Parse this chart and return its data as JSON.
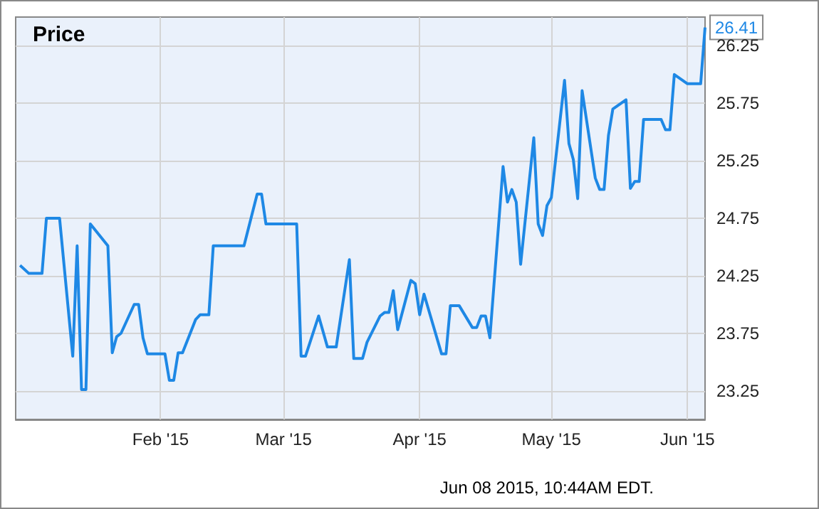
{
  "chart_data": {
    "type": "line",
    "title": "Price",
    "x": [
      "2014-12-31",
      "2015-01-02",
      "2015-01-05",
      "2015-01-06",
      "2015-01-09",
      "2015-01-12",
      "2015-01-13",
      "2015-01-14",
      "2015-01-15",
      "2015-01-16",
      "2015-01-20",
      "2015-01-21",
      "2015-01-22",
      "2015-01-23",
      "2015-01-26",
      "2015-01-27",
      "2015-01-28",
      "2015-01-29",
      "2015-02-02",
      "2015-02-03",
      "2015-02-04",
      "2015-02-05",
      "2015-02-06",
      "2015-02-09",
      "2015-02-10",
      "2015-02-12",
      "2015-02-13",
      "2015-02-20",
      "2015-02-23",
      "2015-02-24",
      "2015-02-25",
      "2015-03-04",
      "2015-03-05",
      "2015-03-06",
      "2015-03-09",
      "2015-03-11",
      "2015-03-13",
      "2015-03-16",
      "2015-03-17",
      "2015-03-19",
      "2015-03-20",
      "2015-03-23",
      "2015-03-24",
      "2015-03-25",
      "2015-03-26",
      "2015-03-27",
      "2015-03-30",
      "2015-03-31",
      "2015-04-01",
      "2015-04-02",
      "2015-04-06",
      "2015-04-07",
      "2015-04-08",
      "2015-04-10",
      "2015-04-13",
      "2015-04-14",
      "2015-04-15",
      "2015-04-16",
      "2015-04-17",
      "2015-04-20",
      "2015-04-21",
      "2015-04-22",
      "2015-04-23",
      "2015-04-24",
      "2015-04-27",
      "2015-04-28",
      "2015-04-29",
      "2015-04-30",
      "2015-05-01",
      "2015-05-04",
      "2015-05-05",
      "2015-05-06",
      "2015-05-07",
      "2015-05-08",
      "2015-05-11",
      "2015-05-12",
      "2015-05-13",
      "2015-05-14",
      "2015-05-15",
      "2015-05-18",
      "2015-05-19",
      "2015-05-20",
      "2015-05-21",
      "2015-05-22",
      "2015-05-26",
      "2015-05-27",
      "2015-05-28",
      "2015-05-29",
      "2015-06-01",
      "2015-06-04",
      "2015-06-05"
    ],
    "series": [
      {
        "color": "#1e88e5",
        "values": [
          24.34,
          24.27,
          24.27,
          24.75,
          24.75,
          23.55,
          24.51,
          23.26,
          23.26,
          24.7,
          24.51,
          23.58,
          23.72,
          23.75,
          24.0,
          24.0,
          23.71,
          23.57,
          23.57,
          23.34,
          23.34,
          23.58,
          23.58,
          23.87,
          23.91,
          23.91,
          24.51,
          24.51,
          24.96,
          24.96,
          24.7,
          24.7,
          23.55,
          23.55,
          23.9,
          23.63,
          23.63,
          24.39,
          23.53,
          23.53,
          23.67,
          23.9,
          23.93,
          23.93,
          24.12,
          23.78,
          24.21,
          24.18,
          23.91,
          24.09,
          23.57,
          23.57,
          23.99,
          23.99,
          23.8,
          23.8,
          23.9,
          23.9,
          23.71,
          25.2,
          24.89,
          25.0,
          24.89,
          24.35,
          25.45,
          24.7,
          24.6,
          24.86,
          24.93,
          25.95,
          25.4,
          25.26,
          24.92,
          25.86,
          25.1,
          25.0,
          25.0,
          25.47,
          25.7,
          25.78,
          25.01,
          25.07,
          25.07,
          25.61,
          25.61,
          25.52,
          25.52,
          26.0,
          25.92,
          25.92,
          26.41
        ]
      }
    ],
    "xlim": [
      "2014-12-30",
      "2015-06-05"
    ],
    "xticks": [
      {
        "value": "2015-02-01",
        "label": "Feb '15"
      },
      {
        "value": "2015-03-01",
        "label": "Mar '15"
      },
      {
        "value": "2015-04-01",
        "label": "Apr '15"
      },
      {
        "value": "2015-05-01",
        "label": "May '15"
      },
      {
        "value": "2015-06-01",
        "label": "Jun '15"
      }
    ],
    "ylim": [
      23,
      26.5
    ],
    "yticks": [
      23.25,
      23.75,
      24.25,
      24.75,
      25.25,
      25.75,
      26.25
    ],
    "annotations": [
      {
        "text": "26.41",
        "x": "2015-06-05",
        "y": 26.41
      },
      "Jun 08 2015, 10:44AM EDT."
    ],
    "grid": true,
    "marker": "none",
    "line_style": "solid"
  }
}
